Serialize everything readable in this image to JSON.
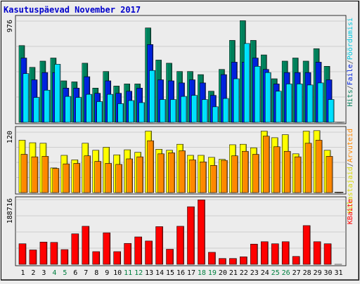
{
  "chart_data": {
    "type": "bar",
    "title": "Kasutuspäevad November 2017",
    "categories": [
      "1",
      "2",
      "3",
      "4",
      "5",
      "6",
      "7",
      "8",
      "9",
      "10",
      "11",
      "12",
      "13",
      "14",
      "15",
      "16",
      "17",
      "18",
      "19",
      "20",
      "21",
      "22",
      "23",
      "24",
      "25",
      "26",
      "27",
      "28",
      "29",
      "30",
      "31"
    ],
    "weekend_days": [
      "4",
      "5",
      "11",
      "12",
      "18",
      "19",
      "25",
      "26"
    ],
    "colors": {
      "title": "#0000cc",
      "weekday_label": "#000000",
      "weekend_label": "#008040",
      "hits": "#00805b",
      "files": "#0022dd",
      "pages": "#00e0ff",
      "visits": "#ffff00",
      "sites": "#ff8800",
      "kbytes": "#ff0000"
    },
    "panels": [
      {
        "name": "hits-files-pages",
        "ylim": [
          0,
          976
        ],
        "max_label": "976",
        "legend": [
          "Hits",
          "/",
          "Faile",
          "/",
          "Pöördumisi"
        ],
        "legend_colors": [
          "#00805b",
          "#555555",
          "#0022dd",
          "#555555",
          "#00c8e0"
        ],
        "series": [
          {
            "name": "Hits",
            "values": [
              740,
              530,
              590,
              620,
              400,
              390,
              570,
              330,
              490,
              350,
              370,
              370,
              910,
              600,
              570,
              490,
              490,
              460,
              300,
              510,
              790,
              980,
              790,
              650,
              420,
              590,
              620,
              590,
              710,
              540,
              1
            ]
          },
          {
            "name": "Faile",
            "values": [
              620,
              410,
              480,
              480,
              330,
              330,
              440,
              280,
              400,
              280,
              300,
              330,
              750,
              410,
              400,
              380,
              410,
              380,
              260,
              460,
              580,
              580,
              620,
              510,
              370,
              480,
              480,
              480,
              580,
              410,
              1
            ]
          },
          {
            "name": "Pöördumisi",
            "values": [
              470,
              240,
              310,
              560,
              250,
              240,
              270,
              200,
              270,
              180,
              210,
              190,
              500,
              220,
              220,
              250,
              260,
              220,
              150,
              230,
              420,
              760,
              540,
              480,
              300,
              370,
              370,
              360,
              380,
              220,
              1
            ]
          }
        ]
      },
      {
        "name": "visits-sites",
        "ylim": [
          0,
          120
        ],
        "max_label": "120",
        "legend": [
          "Külastajaid",
          "/",
          "Arvuteid"
        ],
        "legend_colors": [
          "#d8d800",
          "#555555",
          "#ff8800"
        ],
        "series": [
          {
            "name": "Külastajaid",
            "values": [
              104,
              99,
              98,
              49,
              74,
              65,
              98,
              84,
              90,
              75,
              85,
              80,
              122,
              86,
              84,
              96,
              74,
              74,
              70,
              66,
              95,
              96,
              89,
              122,
              109,
              115,
              77,
              122,
              123,
              84,
              1
            ]
          },
          {
            "name": "Arvuteid",
            "values": [
              76,
              71,
              72,
              48,
              57,
              58,
              73,
              62,
              58,
              56,
              67,
              71,
              103,
              77,
              79,
              83,
              65,
              61,
              54,
              64,
              73,
              82,
              76,
              112,
              91,
              82,
              71,
              98,
              104,
              72,
              1
            ]
          }
        ]
      },
      {
        "name": "kbytes",
        "ylim": [
          0,
          188716
        ],
        "max_label": "188716",
        "legend": [
          "KBaite"
        ],
        "legend_colors": [
          "#ff0000"
        ],
        "series": [
          {
            "name": "KBaite",
            "values": [
              60000,
              42000,
              65000,
              64000,
              43000,
              89000,
              111000,
              37000,
              92000,
              37000,
              61000,
              80000,
              68000,
              110000,
              44000,
              111000,
              168000,
              188000,
              35000,
              17000,
              17000,
              22000,
              59000,
              66000,
              60000,
              66000,
              23000,
              113000,
              66000,
              60000,
              1
            ]
          }
        ]
      }
    ]
  }
}
